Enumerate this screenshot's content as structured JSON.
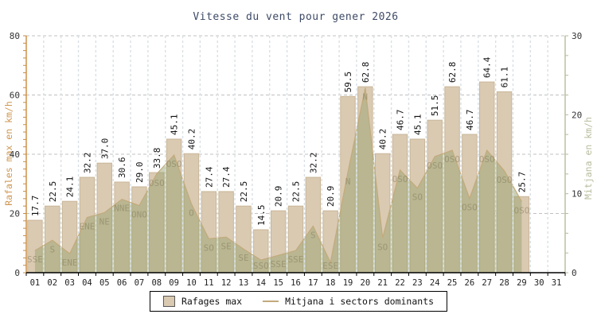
{
  "title": "Vitesse du vent pour gener 2026",
  "legend": {
    "items": [
      {
        "label": "Rafages max",
        "swatch": "rect"
      },
      {
        "label": "Mitjana i sectors dominants",
        "swatch": "line"
      }
    ]
  },
  "colors": {
    "title": "#3d4a66",
    "bar_fill": "#dacab2",
    "bar_stroke": "#c9b698",
    "area_fill": "rgba(152,161,112,0.5)",
    "area_line": "#c3aa7c",
    "h_grid": "#c0c0c0",
    "v_grid": "#d8e0e5",
    "left_axis": "#c98a3e",
    "right_axis": "#b7bb9b",
    "axis_number": "#333333",
    "x_label": "#222222",
    "value_label": "#111111",
    "direction_label": "rgba(128,118,88,0.5)",
    "bottom_axis": "#000000"
  },
  "chart_data": {
    "type": "bar",
    "title": "Vitesse du vent pour gener 2026",
    "categories": [
      "01",
      "02",
      "03",
      "04",
      "05",
      "06",
      "07",
      "08",
      "09",
      "10",
      "11",
      "12",
      "13",
      "14",
      "15",
      "16",
      "17",
      "18",
      "19",
      "20",
      "21",
      "22",
      "23",
      "24",
      "25",
      "26",
      "27",
      "28",
      "29",
      "30",
      "31"
    ],
    "series": [
      {
        "name": "Rafages max",
        "type": "bar",
        "axis": "left",
        "values": [
          17.7,
          22.5,
          24.1,
          32.2,
          37.0,
          30.6,
          29.0,
          33.8,
          45.1,
          40.2,
          27.4,
          27.4,
          22.5,
          14.5,
          20.9,
          22.5,
          32.2,
          20.9,
          59.5,
          62.8,
          40.2,
          46.7,
          45.1,
          51.5,
          62.8,
          46.7,
          64.4,
          61.1,
          25.7,
          null,
          null
        ]
      },
      {
        "name": "Mitjana i sectors dominants",
        "type": "area",
        "axis": "right",
        "values": [
          2.8,
          4.1,
          2.4,
          7.0,
          7.6,
          9.3,
          8.5,
          12.5,
          14.9,
          8.7,
          4.3,
          4.5,
          3.0,
          1.6,
          2.2,
          2.8,
          5.9,
          1.3,
          12.7,
          23.4,
          4.4,
          13.0,
          10.7,
          14.7,
          15.5,
          9.4,
          15.5,
          12.9,
          9.0,
          null,
          null
        ]
      },
      {
        "name": "Sectors dominants",
        "type": "text",
        "values": [
          "SSE",
          "S",
          "ENE",
          "ENE",
          "NE",
          "NNE",
          "ONO",
          "OSO",
          "OSO",
          "O",
          "SO",
          "SE",
          "SE",
          "SSO",
          "SSE",
          "SSE",
          "S",
          "ESE",
          "N",
          "N",
          "SO",
          "OSO",
          "SO",
          "OSO",
          "OSO",
          "OSO",
          "OSO",
          "OSO",
          "OSO",
          null,
          null
        ]
      }
    ],
    "left_axis": {
      "label": "Rafales max en km/h",
      "min": 0,
      "max": 80,
      "major_ticks": [
        0,
        20,
        40,
        60,
        80
      ],
      "minor_step": 2.5
    },
    "right_axis": {
      "label": "Mitjana en km/h",
      "min": 0,
      "max": 30,
      "major_ticks": [
        0,
        10,
        20,
        30
      ],
      "minor_step": 2.5
    },
    "grid": {
      "horizontal_at_left_values": [
        20,
        40,
        60,
        80
      ],
      "vertical": "day-boundaries, dashed"
    },
    "legend_position": "bottom-center"
  }
}
